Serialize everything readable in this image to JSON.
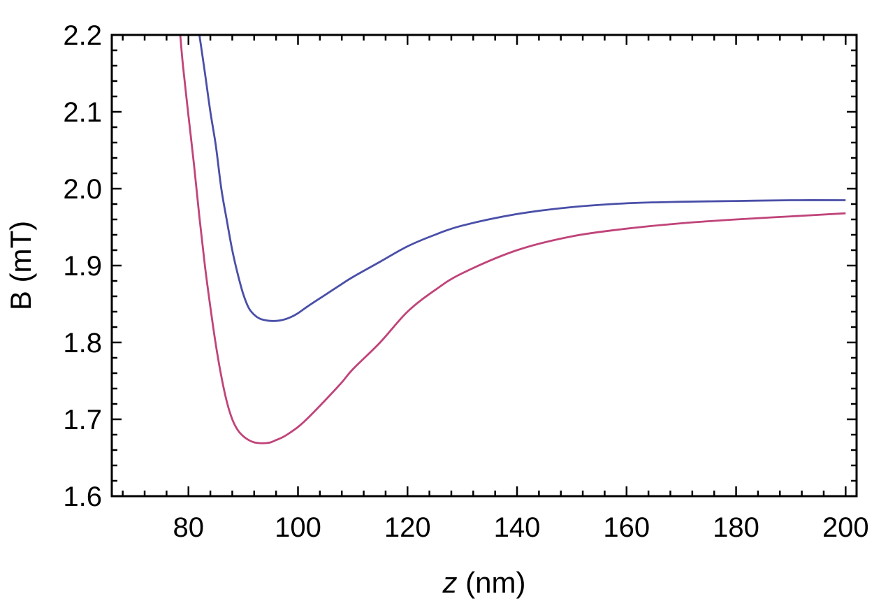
{
  "chart_data": {
    "type": "line",
    "xlabel_var": "z",
    "xlabel_unit": " (nm)",
    "ylabel": "B (mT)",
    "xlim": [
      66,
      202
    ],
    "ylim": [
      1.6,
      2.2
    ],
    "x_ticks": [
      80,
      100,
      120,
      140,
      160,
      180,
      200
    ],
    "x_tick_labels": [
      "80",
      "100",
      "120",
      "140",
      "160",
      "180",
      "200"
    ],
    "y_ticks": [
      1.6,
      1.7,
      1.8,
      1.9,
      2.0,
      2.1,
      2.2
    ],
    "y_tick_labels": [
      "1.6",
      "1.7",
      "1.8",
      "1.9",
      "2.0",
      "2.1",
      "2.2"
    ],
    "grid": false,
    "legend": "none",
    "series": [
      {
        "color": "#4a4fa8",
        "x": [
          82,
          83,
          84,
          85,
          86,
          87,
          88,
          89,
          90,
          91,
          92,
          93,
          94,
          95,
          96,
          97,
          98,
          99,
          100,
          102,
          105,
          108,
          110,
          115,
          120,
          125,
          130,
          140,
          150,
          160,
          170,
          180,
          190,
          200
        ],
        "y": [
          2.2,
          2.151,
          2.1,
          2.056,
          2.0,
          1.959,
          1.92,
          1.889,
          1.863,
          1.845,
          1.836,
          1.831,
          1.829,
          1.828,
          1.828,
          1.829,
          1.831,
          1.834,
          1.838,
          1.848,
          1.862,
          1.876,
          1.885,
          1.905,
          1.925,
          1.94,
          1.952,
          1.967,
          1.976,
          1.981,
          1.983,
          1.984,
          1.985,
          1.985
        ]
      },
      {
        "color": "#c0447a",
        "x": [
          78.5,
          79,
          80,
          81,
          82,
          83,
          84,
          85,
          86,
          87,
          88,
          89,
          90,
          91,
          92,
          93,
          94,
          95,
          96,
          97,
          98,
          100,
          102,
          105,
          108,
          110,
          115,
          120,
          125,
          130,
          140,
          150,
          160,
          170,
          180,
          190,
          200
        ],
        "y": [
          2.2,
          2.16,
          2.095,
          2.032,
          1.963,
          1.9,
          1.846,
          1.797,
          1.756,
          1.723,
          1.7,
          1.686,
          1.678,
          1.673,
          1.67,
          1.669,
          1.669,
          1.67,
          1.673,
          1.676,
          1.68,
          1.69,
          1.703,
          1.725,
          1.748,
          1.765,
          1.8,
          1.84,
          1.868,
          1.89,
          1.92,
          1.938,
          1.948,
          1.955,
          1.96,
          1.964,
          1.968
        ]
      }
    ]
  }
}
